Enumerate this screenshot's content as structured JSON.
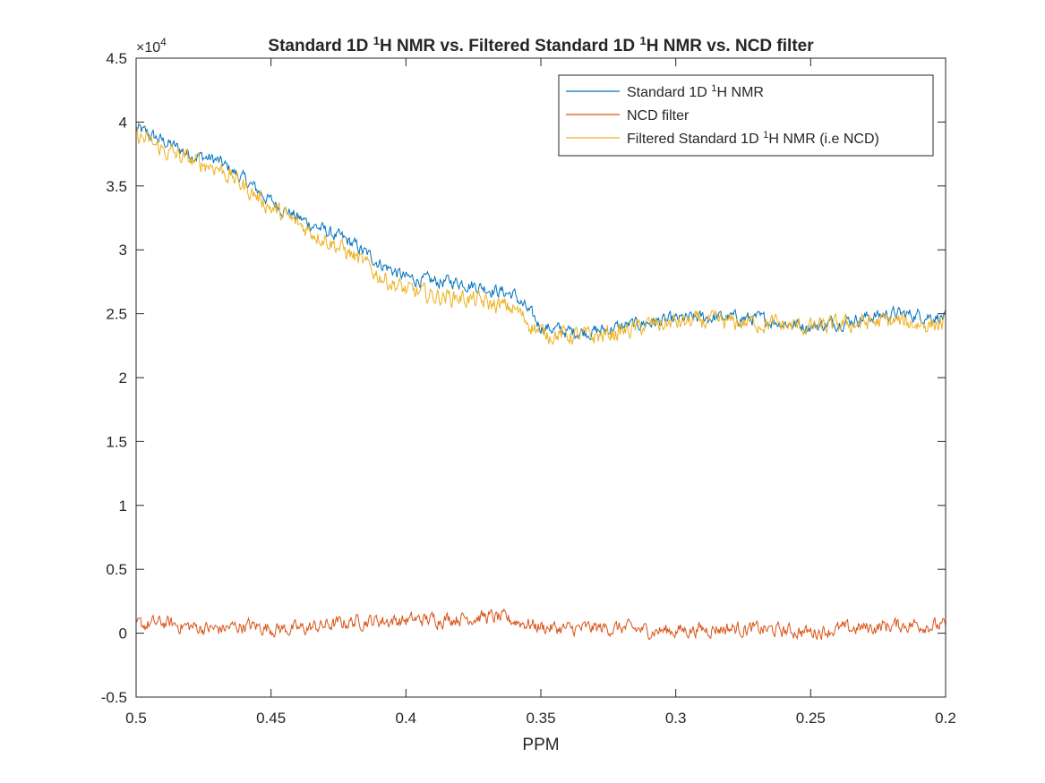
{
  "chart_data": {
    "type": "line",
    "title_parts": [
      "Standard 1D ",
      "1",
      "H NMR vs. Filtered Standard 1D ",
      "1",
      "H NMR vs. NCD filter"
    ],
    "xlabel": "PPM",
    "ylabel": "",
    "xlim": [
      0.5,
      0.2
    ],
    "ylim": [
      -5000,
      45000
    ],
    "x_reversed": true,
    "y_exponent_label": "×10",
    "y_exponent": "4",
    "x_ticks": [
      0.5,
      0.45,
      0.4,
      0.35,
      0.3,
      0.25,
      0.2
    ],
    "x_tick_labels": [
      "0.5",
      "0.45",
      "0.4",
      "0.35",
      "0.3",
      "0.25",
      "0.2"
    ],
    "y_ticks": [
      -5000,
      0,
      5000,
      10000,
      15000,
      20000,
      25000,
      30000,
      35000,
      40000,
      45000
    ],
    "y_tick_labels": [
      "-0.5",
      "0",
      "0.5",
      "1",
      "1.5",
      "2",
      "2.5",
      "3",
      "3.5",
      "4",
      "4.5"
    ],
    "grid": false,
    "legend_position": "top-right",
    "legend": [
      {
        "parts": [
          "Standard 1D ",
          "1",
          "H NMR"
        ],
        "color": "#0072BD"
      },
      {
        "parts": [
          "NCD filter"
        ],
        "color": "#D95319"
      },
      {
        "parts": [
          "Filtered Standard 1D ",
          "1",
          "H NMR (i.e NCD)"
        ],
        "color": "#EDB120"
      }
    ],
    "series": [
      {
        "color": "#0072BD",
        "x": [
          0.5,
          0.49,
          0.48,
          0.47,
          0.46,
          0.45,
          0.44,
          0.43,
          0.42,
          0.41,
          0.4,
          0.39,
          0.38,
          0.37,
          0.36,
          0.35,
          0.34,
          0.33,
          0.32,
          0.31,
          0.3,
          0.29,
          0.28,
          0.27,
          0.26,
          0.25,
          0.24,
          0.23,
          0.22,
          0.21,
          0.2
        ],
        "values": [
          39500,
          38500,
          37500,
          37000,
          35500,
          33800,
          32500,
          31500,
          30500,
          29000,
          27800,
          27500,
          27500,
          27000,
          26500,
          24000,
          23600,
          23600,
          24000,
          24300,
          24500,
          24700,
          24700,
          24600,
          24300,
          24000,
          24300,
          24700,
          25000,
          24900,
          24700
        ],
        "noise": 600
      },
      {
        "color": "#D95319",
        "x": [
          0.5,
          0.49,
          0.48,
          0.47,
          0.46,
          0.45,
          0.44,
          0.43,
          0.42,
          0.41,
          0.4,
          0.39,
          0.38,
          0.37,
          0.36,
          0.35,
          0.34,
          0.33,
          0.32,
          0.31,
          0.3,
          0.29,
          0.28,
          0.27,
          0.26,
          0.25,
          0.24,
          0.23,
          0.22,
          0.21,
          0.2
        ],
        "values": [
          600,
          800,
          500,
          300,
          600,
          400,
          300,
          600,
          900,
          1000,
          1000,
          1100,
          1200,
          1300,
          1000,
          500,
          300,
          400,
          400,
          200,
          200,
          300,
          400,
          300,
          200,
          100,
          300,
          400,
          600,
          700,
          500
        ],
        "noise": 650
      },
      {
        "color": "#EDB120",
        "x": [
          0.5,
          0.49,
          0.48,
          0.47,
          0.46,
          0.45,
          0.44,
          0.43,
          0.42,
          0.41,
          0.4,
          0.39,
          0.38,
          0.37,
          0.36,
          0.35,
          0.34,
          0.33,
          0.32,
          0.31,
          0.3,
          0.29,
          0.28,
          0.27,
          0.26,
          0.25,
          0.24,
          0.23,
          0.22,
          0.21,
          0.2
        ],
        "values": [
          39000,
          37800,
          37000,
          36500,
          35000,
          33300,
          32000,
          30900,
          29600,
          28000,
          26800,
          26400,
          26300,
          25800,
          25400,
          23500,
          23300,
          23200,
          23600,
          24100,
          24300,
          24400,
          24300,
          24300,
          24100,
          23900,
          24100,
          24300,
          24400,
          24200,
          24200
        ],
        "noise": 800
      }
    ]
  }
}
